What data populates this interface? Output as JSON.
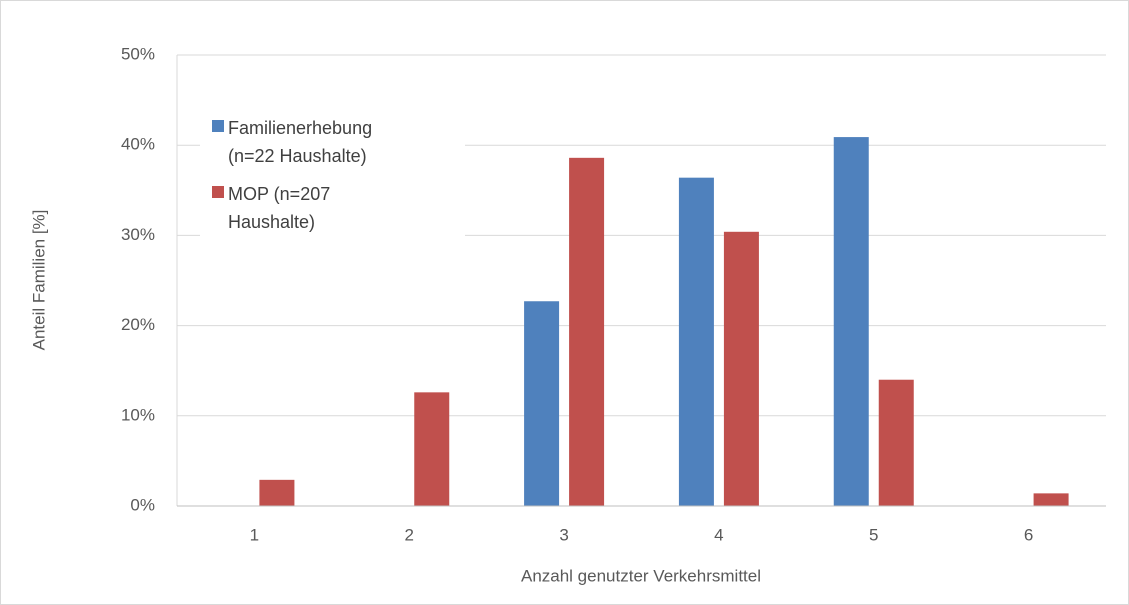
{
  "chart_data": {
    "type": "bar",
    "categories": [
      "1",
      "2",
      "3",
      "4",
      "5",
      "6"
    ],
    "series": [
      {
        "name": "Familienerhebung (n=22 Haushalte)",
        "color": "#4f81bd",
        "values": [
          0,
          0,
          22.7,
          36.4,
          40.9,
          0
        ]
      },
      {
        "name": "MOP (n=207 Haushalte)",
        "color": "#c0504d",
        "values": [
          2.9,
          12.6,
          38.6,
          30.4,
          14.0,
          1.4
        ]
      }
    ],
    "ylim": [
      0,
      50
    ],
    "yticks": [
      {
        "value": 0,
        "label": "0%"
      },
      {
        "value": 10,
        "label": "10%"
      },
      {
        "value": 20,
        "label": "20%"
      },
      {
        "value": 30,
        "label": "30%"
      },
      {
        "value": 40,
        "label": "40%"
      },
      {
        "value": 50,
        "label": "50%"
      }
    ],
    "x_label": "Anzahl genutzter Verkehrsmittel",
    "y_label": "Anteil Familien [%]",
    "grid": true,
    "legend": "upper left"
  }
}
